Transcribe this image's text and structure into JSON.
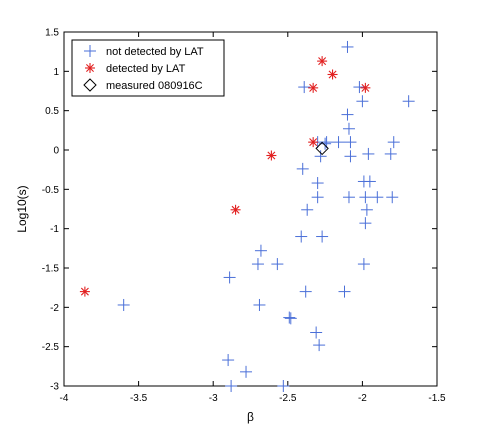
{
  "chart_data": {
    "type": "scatter",
    "title": "",
    "xlabel": "β",
    "ylabel": "Log10(s)",
    "xlim": [
      -4,
      -1.5
    ],
    "ylim": [
      -3,
      1.5
    ],
    "xticks": [
      -4,
      -3.5,
      -3,
      -2.5,
      -2,
      -1.5
    ],
    "xtick_labels": [
      "-4",
      "-3.5",
      "-3",
      "-2.5",
      "-2",
      "-1.5"
    ],
    "yticks": [
      -3,
      -2.5,
      -2,
      -1.5,
      -1,
      -0.5,
      0,
      0.5,
      1,
      1.5
    ],
    "ytick_labels": [
      "-3",
      "-2.5",
      "-2",
      "-1.5",
      "-1",
      "-0.5",
      "0",
      "0.5",
      "1",
      "1.5"
    ],
    "grid": false,
    "legend_position": "top-left",
    "series": [
      {
        "name": "not detected by LAT",
        "marker": "plus",
        "color": "#4a6fd8",
        "points": [
          [
            -3.6,
            -1.97
          ],
          [
            -2.89,
            -1.62
          ],
          [
            -2.9,
            -2.67
          ],
          [
            -2.88,
            -3.0
          ],
          [
            -2.78,
            -2.82
          ],
          [
            -2.68,
            -1.28
          ],
          [
            -2.7,
            -1.45
          ],
          [
            -2.69,
            -1.97
          ],
          [
            -2.57,
            -1.45
          ],
          [
            -2.53,
            -3.0
          ],
          [
            -2.48,
            -2.14
          ],
          [
            -2.49,
            -2.13
          ],
          [
            -2.4,
            -0.24
          ],
          [
            -2.41,
            -1.1
          ],
          [
            -2.37,
            -0.76
          ],
          [
            -2.38,
            -1.8
          ],
          [
            -2.39,
            0.8
          ],
          [
            -2.31,
            -2.32
          ],
          [
            -2.29,
            -2.48
          ],
          [
            -2.3,
            -0.42
          ],
          [
            -2.3,
            -0.6
          ],
          [
            -2.27,
            -1.1
          ],
          [
            -2.28,
            -0.08
          ],
          [
            -2.25,
            0.08
          ],
          [
            -2.3,
            0.1
          ],
          [
            -2.24,
            0.1
          ],
          [
            -2.16,
            0.1
          ],
          [
            -2.12,
            -1.8
          ],
          [
            -2.1,
            0.45
          ],
          [
            -2.09,
            0.27
          ],
          [
            -2.08,
            0.1
          ],
          [
            -2.08,
            -0.08
          ],
          [
            -2.09,
            -0.6
          ],
          [
            -2.1,
            1.31
          ],
          [
            -2.02,
            0.8
          ],
          [
            -2.0,
            0.62
          ],
          [
            -1.99,
            -0.4
          ],
          [
            -1.98,
            -0.6
          ],
          [
            -1.96,
            -0.05
          ],
          [
            -1.97,
            -0.76
          ],
          [
            -1.98,
            -0.93
          ],
          [
            -1.99,
            -1.45
          ],
          [
            -1.95,
            -0.4
          ],
          [
            -1.9,
            -0.6
          ],
          [
            -1.81,
            -0.05
          ],
          [
            -1.79,
            0.1
          ],
          [
            -1.8,
            -0.6
          ],
          [
            -1.69,
            0.62
          ]
        ]
      },
      {
        "name": "detected by LAT",
        "marker": "asterisk",
        "color": "#e22020",
        "points": [
          [
            -3.86,
            -1.8
          ],
          [
            -2.85,
            -0.76
          ],
          [
            -2.61,
            -0.07
          ],
          [
            -2.33,
            0.79
          ],
          [
            -2.33,
            0.1
          ],
          [
            -2.27,
            1.13
          ],
          [
            -2.2,
            0.96
          ],
          [
            -1.98,
            0.79
          ]
        ]
      },
      {
        "name": "measured 080916C",
        "marker": "diamond",
        "color": "#000000",
        "points": [
          [
            -2.27,
            0.02
          ]
        ]
      }
    ]
  }
}
